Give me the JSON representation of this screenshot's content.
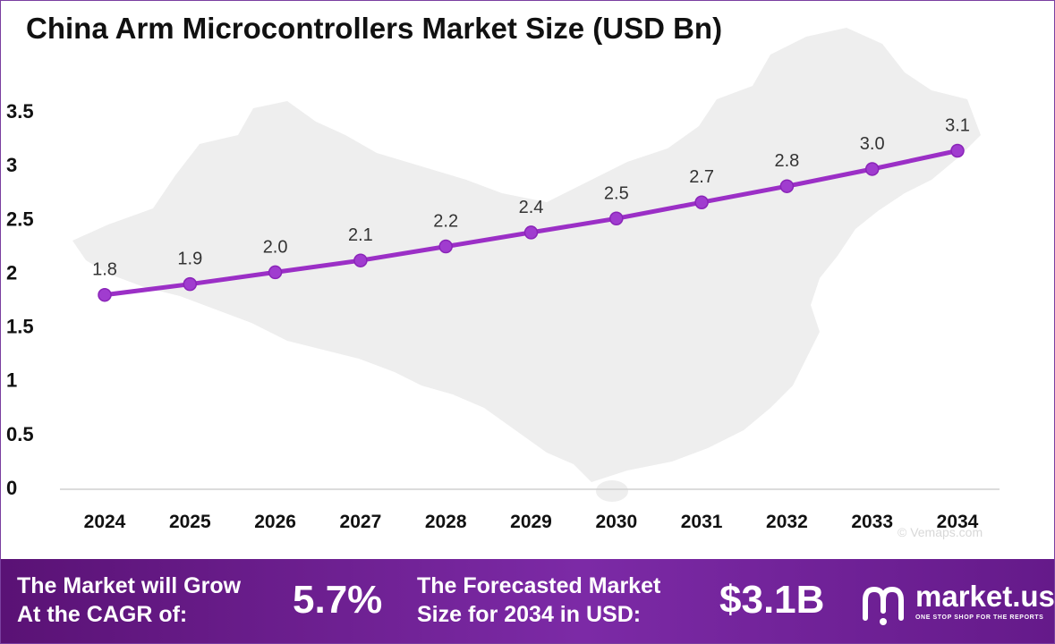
{
  "chart_data": {
    "type": "line",
    "title": "China Arm Microcontrollers Market Size (USD Bn)",
    "xlabel": "",
    "ylabel": "",
    "categories": [
      "2024",
      "2025",
      "2026",
      "2027",
      "2028",
      "2029",
      "2030",
      "2031",
      "2032",
      "2033",
      "2034"
    ],
    "values": [
      1.8,
      1.9,
      2.0,
      2.1,
      2.2,
      2.4,
      2.5,
      2.7,
      2.8,
      3.0,
      3.1
    ],
    "plotted_values": [
      1.79,
      1.89,
      2.0,
      2.11,
      2.24,
      2.37,
      2.5,
      2.65,
      2.8,
      2.96,
      3.13
    ],
    "data_labels": [
      "1.8",
      "1.9",
      "2.0",
      "2.1",
      "2.2",
      "2.4",
      "2.5",
      "2.7",
      "2.8",
      "3.0",
      "3.1"
    ],
    "y_ticks": [
      "0",
      "0.5",
      "1",
      "1.5",
      "2",
      "2.5",
      "3",
      "3.5"
    ],
    "y_tick_values": [
      0,
      0.5,
      1,
      1.5,
      2,
      2.5,
      3,
      3.5
    ],
    "ylim": [
      0,
      3.5
    ],
    "grid": false,
    "legend": "none",
    "line_color": "#9b2fc6",
    "marker_color": "#a03ccf"
  },
  "footer": {
    "cagr_line1": "The Market will Grow",
    "cagr_line2": "At the CAGR of:",
    "cagr_value": "5.7%",
    "forecast_line1": "The Forecasted Market",
    "forecast_line2": "Size for 2034 in USD:",
    "forecast_value": "$3.1B"
  },
  "brand": {
    "name": "market.us",
    "tagline": "ONE STOP SHOP FOR THE REPORTS",
    "icon": "market-us-logo-icon"
  },
  "watermark": "© Vemaps.com",
  "colors": {
    "footer_start": "#5a1275",
    "footer_end": "#7c2aa6",
    "map_fill": "#eeeeee"
  }
}
